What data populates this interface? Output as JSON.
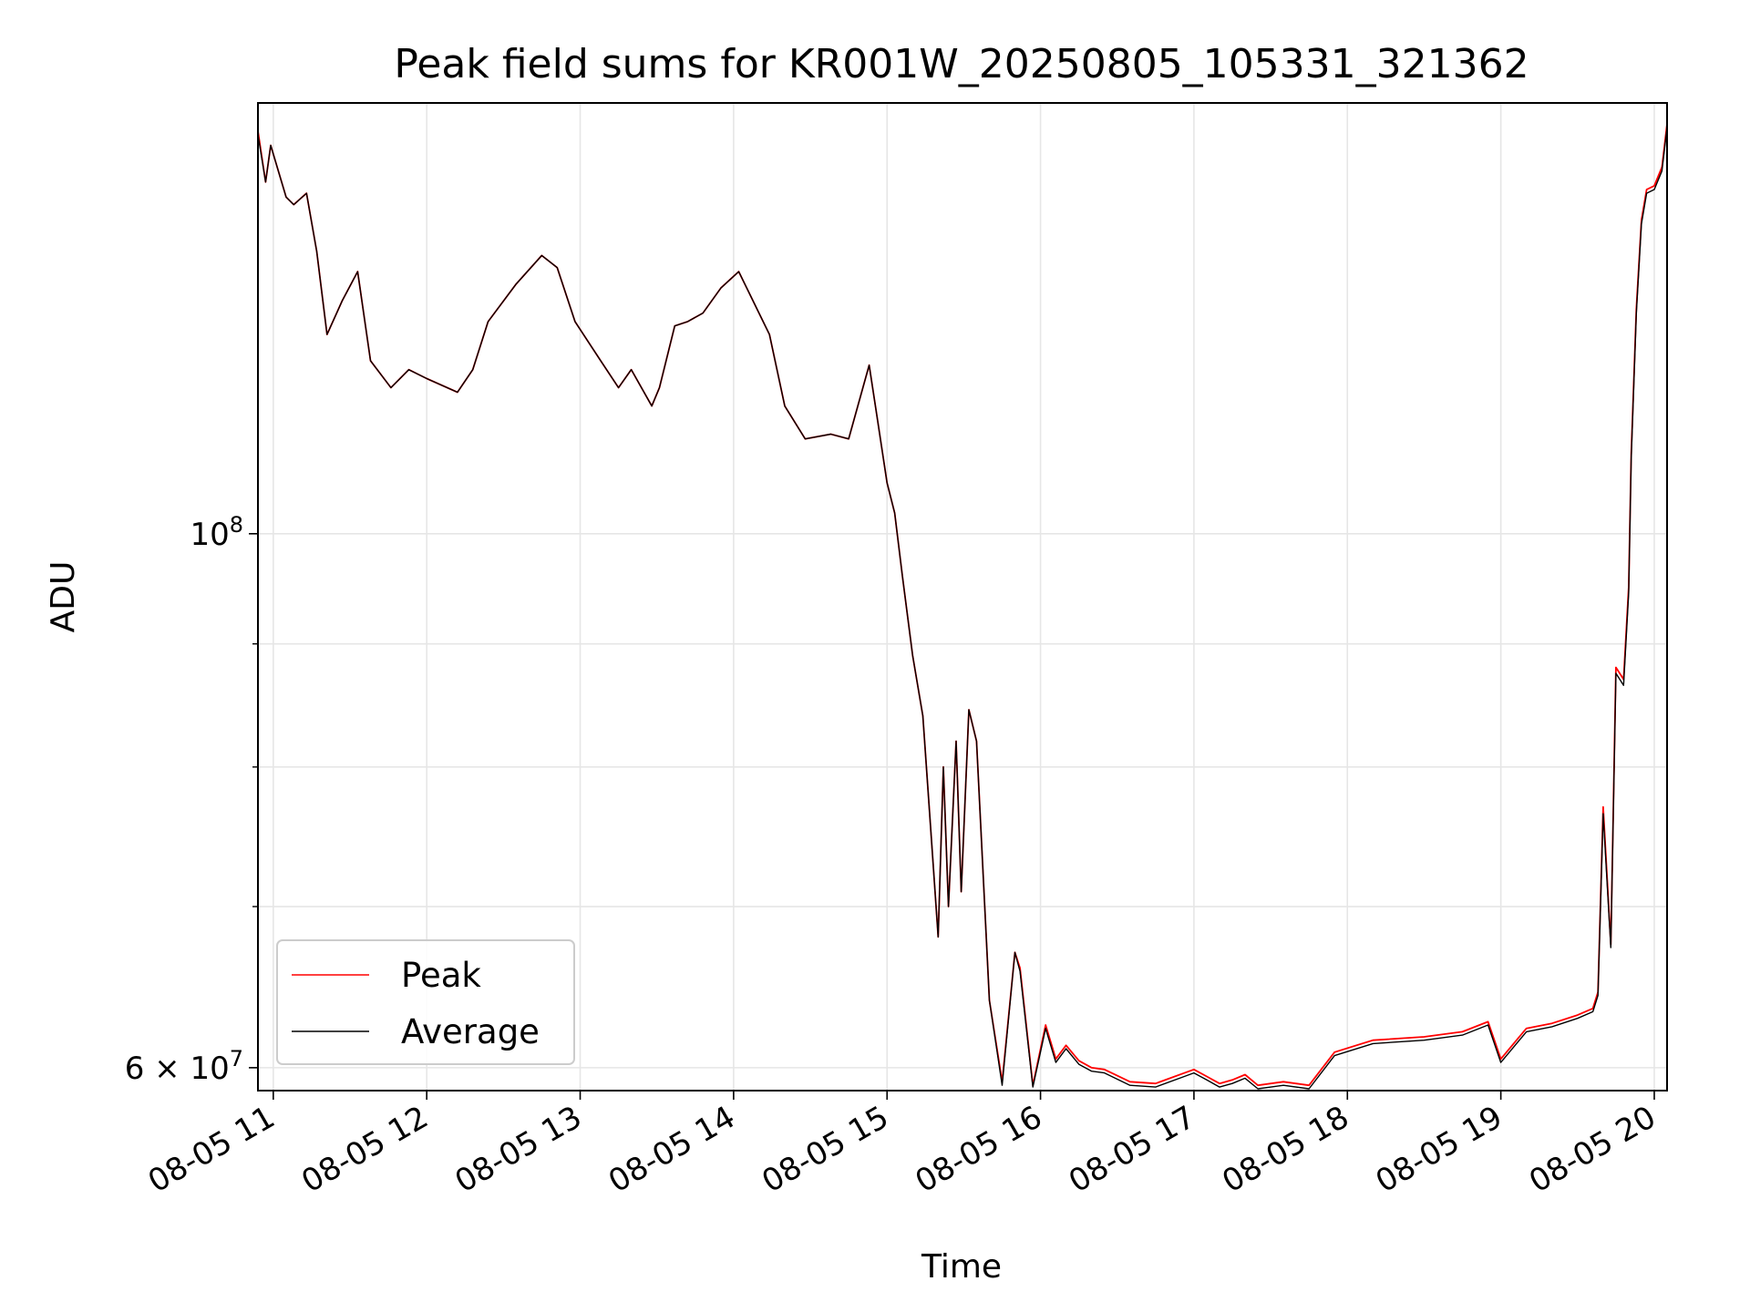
{
  "chart_data": {
    "type": "line",
    "title": "Peak field sums for KR001W_20250805_105331_321362",
    "xlabel": "Time",
    "ylabel": "ADU",
    "yscale": "log",
    "grid": true,
    "legend_position": "lower-left",
    "xlim": [
      "08-05 10:54",
      "08-05 20:05"
    ],
    "ylim": [
      58700000,
      151000000
    ],
    "x_ticks": [
      "08-05 11",
      "08-05 12",
      "08-05 13",
      "08-05 14",
      "08-05 15",
      "08-05 16",
      "08-05 17",
      "08-05 18",
      "08-05 19",
      "08-05 20"
    ],
    "y_ticks": [
      {
        "label": "10",
        "exp": "8",
        "value": 100000000
      },
      {
        "label": "6 × 10",
        "exp": "7",
        "value": 60000000
      }
    ],
    "y_minor_ticks": [
      70000000,
      80000000,
      90000000
    ],
    "x": [
      "08-05 10:54",
      "08-05 10:57",
      "08-05 10:59",
      "08-05 11:05",
      "08-05 11:08",
      "08-05 11:13",
      "08-05 11:17",
      "08-05 11:21",
      "08-05 11:27",
      "08-05 11:33",
      "08-05 11:38",
      "08-05 11:46",
      "08-05 11:53",
      "08-05 12:00",
      "08-05 12:12",
      "08-05 12:18",
      "08-05 12:24",
      "08-05 12:35",
      "08-05 12:45",
      "08-05 12:51",
      "08-05 12:58",
      "08-05 13:08",
      "08-05 13:15",
      "08-05 13:20",
      "08-05 13:28",
      "08-05 13:31",
      "08-05 13:37",
      "08-05 13:42",
      "08-05 13:48",
      "08-05 13:55",
      "08-05 14:02",
      "08-05 14:14",
      "08-05 14:20",
      "08-05 14:28",
      "08-05 14:38",
      "08-05 14:45",
      "08-05 14:53",
      "08-05 14:56",
      "08-05 15:00",
      "08-05 15:03",
      "08-05 15:06",
      "08-05 15:10",
      "08-05 15:14",
      "08-05 15:18",
      "08-05 15:20",
      "08-05 15:22",
      "08-05 15:24",
      "08-05 15:27",
      "08-05 15:29",
      "08-05 15:32",
      "08-05 15:35",
      "08-05 15:40",
      "08-05 15:45",
      "08-05 15:50",
      "08-05 15:52",
      "08-05 15:57",
      "08-05 16:02",
      "08-05 16:06",
      "08-05 16:10",
      "08-05 16:15",
      "08-05 16:20",
      "08-05 16:25",
      "08-05 16:35",
      "08-05 16:45",
      "08-05 17:00",
      "08-05 17:05",
      "08-05 17:10",
      "08-05 17:15",
      "08-05 17:20",
      "08-05 17:25",
      "08-05 17:35",
      "08-05 17:45",
      "08-05 17:55",
      "08-05 18:10",
      "08-05 18:30",
      "08-05 18:45",
      "08-05 18:55",
      "08-05 19:00",
      "08-05 19:10",
      "08-05 19:20",
      "08-05 19:30",
      "08-05 19:36",
      "08-05 19:38",
      "08-05 19:40",
      "08-05 19:43",
      "08-05 19:45",
      "08-05 19:48",
      "08-05 19:50",
      "08-05 19:51",
      "08-05 19:53",
      "08-05 19:55",
      "08-05 19:57",
      "08-05 20:00",
      "08-05 20:03",
      "08-05 20:05"
    ],
    "series": [
      {
        "name": "Peak",
        "color": "#ff0000",
        "values": [
          147000000,
          140000000,
          145000000,
          138000000,
          137000000,
          138500000,
          131000000,
          121000000,
          125000000,
          128500000,
          118000000,
          115000000,
          117000000,
          116000000,
          114500000,
          117000000,
          122500000,
          127000000,
          130500000,
          129000000,
          122500000,
          118000000,
          115000000,
          117000000,
          113000000,
          115000000,
          122000000,
          122500000,
          123500000,
          126500000,
          128500000,
          121000000,
          113000000,
          109500000,
          110000000,
          109500000,
          117500000,
          112000000,
          105000000,
          102000000,
          96000000,
          89000000,
          84000000,
          73000000,
          68000000,
          80000000,
          70000000,
          82000000,
          71000000,
          84500000,
          82000000,
          64000000,
          59200000,
          67000000,
          66000000,
          59000000,
          62500000,
          60500000,
          61300000,
          60400000,
          60000000,
          59900000,
          59200000,
          59100000,
          59900000,
          59500000,
          59100000,
          59300000,
          59600000,
          59000000,
          59200000,
          59000000,
          60900000,
          61600000,
          61800000,
          62100000,
          62700000,
          60500000,
          62300000,
          62600000,
          63100000,
          63500000,
          64500000,
          77000000,
          67500000,
          88000000,
          87000000,
          95000000,
          108000000,
          124000000,
          135000000,
          139000000,
          139500000,
          142000000,
          148000000
        ]
      },
      {
        "name": "Average",
        "color": "#000000",
        "values": [
          146500000,
          140000000,
          145000000,
          138000000,
          137000000,
          138500000,
          131000000,
          121000000,
          125000000,
          128500000,
          118000000,
          115000000,
          117000000,
          116000000,
          114500000,
          117000000,
          122500000,
          127000000,
          130500000,
          129000000,
          122500000,
          118000000,
          115000000,
          117000000,
          113000000,
          115000000,
          122000000,
          122500000,
          123500000,
          126500000,
          128500000,
          121000000,
          113000000,
          109500000,
          110000000,
          109500000,
          117500000,
          112000000,
          105000000,
          102000000,
          96000000,
          89000000,
          84000000,
          73000000,
          68000000,
          80000000,
          70000000,
          82000000,
          71000000,
          84500000,
          82000000,
          64000000,
          59000000,
          67000000,
          65800000,
          58900000,
          62300000,
          60300000,
          61100000,
          60200000,
          59800000,
          59700000,
          59000000,
          58900000,
          59700000,
          59300000,
          58900000,
          59100000,
          59400000,
          58800000,
          59000000,
          58800000,
          60700000,
          61400000,
          61600000,
          61900000,
          62500000,
          60300000,
          62100000,
          62400000,
          62900000,
          63300000,
          64300000,
          76500000,
          67300000,
          87500000,
          86500000,
          94500000,
          107500000,
          123500000,
          134500000,
          138500000,
          139000000,
          141500000,
          147500000
        ]
      }
    ]
  }
}
